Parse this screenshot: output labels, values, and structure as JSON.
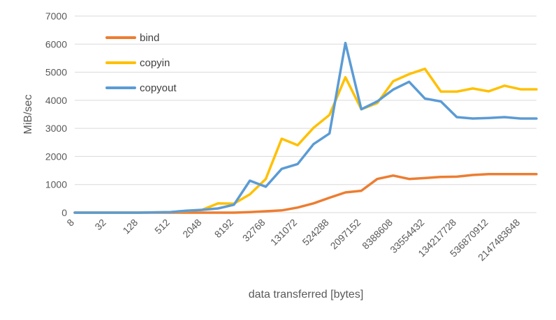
{
  "chart_data": {
    "type": "line",
    "title": "",
    "xlabel": "data transferred [bytes]",
    "ylabel": "MiB/sec",
    "ylim": [
      0,
      7000
    ],
    "yticks": [
      "0",
      "1000",
      "2000",
      "3000",
      "4000",
      "5000",
      "6000",
      "7000"
    ],
    "x": [
      "8",
      "16",
      "32",
      "64",
      "128",
      "256",
      "512",
      "1024",
      "2048",
      "4096",
      "8192",
      "16384",
      "32768",
      "65536",
      "131072",
      "262144",
      "524288",
      "1048576",
      "2097152",
      "4194304",
      "8388608",
      "16777216",
      "33554432",
      "67108864",
      "134217728",
      "268435456",
      "536870912",
      "1073741824",
      "2147483648",
      "4294967296"
    ],
    "xticks_shown": [
      "8",
      "32",
      "128",
      "512",
      "2048",
      "8192",
      "32768",
      "131072",
      "524288",
      "2097152",
      "8388608",
      "33554432",
      "134217728",
      "536870912",
      "2147483648"
    ],
    "grid": "horizontal",
    "legend": "top-left",
    "series": [
      {
        "name": "bind",
        "color": "#ED7D31",
        "values": [
          0,
          0,
          0,
          0,
          0,
          0,
          0,
          0,
          0,
          0,
          0,
          20,
          50,
          80,
          180,
          330,
          530,
          720,
          780,
          1200,
          1320,
          1200,
          1230,
          1270,
          1280,
          1340,
          1370,
          1370,
          1370,
          1370
        ]
      },
      {
        "name": "copyin",
        "color": "#FFC000",
        "values": [
          0,
          0,
          0,
          0,
          0,
          10,
          20,
          60,
          100,
          330,
          320,
          650,
          1200,
          2630,
          2400,
          3020,
          3480,
          4820,
          3680,
          3900,
          4680,
          4930,
          5120,
          4310,
          4310,
          4420,
          4320,
          4520,
          4390,
          4390
        ]
      },
      {
        "name": "copyout",
        "color": "#5B9BD5",
        "values": [
          0,
          0,
          0,
          0,
          0,
          10,
          20,
          70,
          100,
          150,
          280,
          1140,
          920,
          1560,
          1730,
          2440,
          2820,
          6040,
          3680,
          3960,
          4380,
          4660,
          4060,
          3960,
          3400,
          3350,
          3370,
          3400,
          3350,
          3350
        ]
      }
    ]
  }
}
